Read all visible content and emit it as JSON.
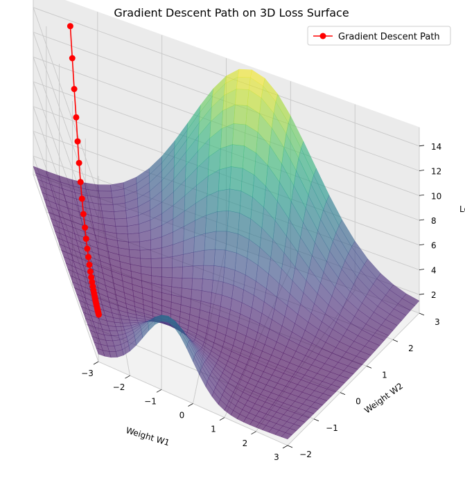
{
  "chart_data": {
    "type": "surface3d",
    "title": "Gradient Descent Path on 3D Loss Surface",
    "xlabel": "Weight W1",
    "ylabel": "Weight W2",
    "zlabel": "Loss",
    "xlim": [
      -3,
      3
    ],
    "ylim": [
      -2,
      3
    ],
    "zlim": [
      0.5,
      15.5
    ],
    "x_ticks": [
      "−3",
      "−2",
      "−1",
      "0",
      "1",
      "2",
      "3"
    ],
    "y_ticks": [
      "−2",
      "−1",
      "0",
      "1",
      "2",
      "3"
    ],
    "z_ticks": [
      "2",
      "4",
      "6",
      "8",
      "10",
      "12",
      "14"
    ],
    "x_tick_values": [
      -3,
      -2,
      -1,
      0,
      1,
      2,
      3
    ],
    "y_tick_values": [
      -2,
      -1,
      0,
      1,
      2,
      3
    ],
    "z_tick_values": [
      2,
      4,
      6,
      8,
      10,
      12,
      14
    ],
    "colormap": "viridis",
    "surface_alpha": 0.6,
    "legend": {
      "label": "Gradient Descent Path",
      "placement": "top-right"
    },
    "path": {
      "name": "Gradient Descent Path",
      "color": "#ff0000",
      "x": [
        -2.5,
        -2.5,
        -2.5,
        -2.5,
        -2.5,
        -2.5,
        -2.5,
        -2.5,
        -2.5,
        -2.5,
        -2.5,
        -2.5,
        -2.5,
        -2.5,
        -2.5,
        -2.5,
        -2.5,
        -2.5,
        -2.5,
        -2.5,
        -2.5,
        -2.5,
        -2.5,
        -2.5,
        -2.5,
        -2.5,
        -2.5,
        -2.5,
        -2.5,
        -2.5,
        -2.5,
        -2.5
      ],
      "y": [
        2.5,
        2.3,
        2.1,
        1.9,
        1.75,
        1.6,
        1.45,
        1.3,
        1.15,
        1.0,
        0.88,
        0.76,
        0.65,
        0.54,
        0.44,
        0.35,
        0.27,
        0.19,
        0.12,
        0.06,
        0.0,
        -0.05,
        -0.1,
        -0.14,
        -0.18,
        -0.22,
        -0.26,
        -0.3,
        -0.33,
        -0.36,
        -0.39,
        -0.42
      ],
      "z": [
        14.9,
        12.9,
        11.0,
        9.3,
        7.8,
        6.5,
        5.4,
        4.5,
        3.7,
        3.05,
        2.5,
        2.05,
        1.7,
        1.4,
        1.15,
        0.95,
        0.8,
        0.68,
        0.58,
        0.5,
        0.44,
        0.39,
        0.35,
        0.32,
        0.29,
        0.27,
        0.25,
        0.24,
        0.23,
        0.22,
        0.21,
        0.2
      ]
    }
  }
}
